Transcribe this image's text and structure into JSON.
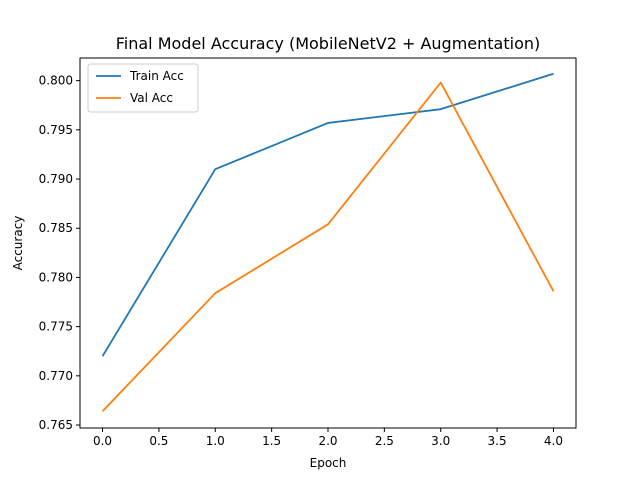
{
  "chart_data": {
    "type": "line",
    "title": "Final Model Accuracy (MobileNetV2 + Augmentation)",
    "xlabel": "Epoch",
    "ylabel": "Accuracy",
    "x": [
      0,
      1,
      2,
      3,
      4
    ],
    "xlim": [
      -0.2,
      4.2
    ],
    "ylim": [
      0.7647,
      0.8023
    ],
    "xticks": [
      0.0,
      0.5,
      1.0,
      1.5,
      2.0,
      2.5,
      3.0,
      3.5,
      4.0
    ],
    "xtick_labels": [
      "0.0",
      "0.5",
      "1.0",
      "1.5",
      "2.0",
      "2.5",
      "3.0",
      "3.5",
      "4.0"
    ],
    "yticks": [
      0.765,
      0.77,
      0.775,
      0.78,
      0.785,
      0.79,
      0.795,
      0.8
    ],
    "ytick_labels": [
      "0.765",
      "0.770",
      "0.775",
      "0.780",
      "0.785",
      "0.790",
      "0.795",
      "0.800"
    ],
    "grid": false,
    "legend_position": "top-left",
    "series": [
      {
        "name": "Train Acc",
        "color": "#1f77b4",
        "values": [
          0.772,
          0.791,
          0.7957,
          0.7971,
          0.8007
        ]
      },
      {
        "name": "Val Acc",
        "color": "#ff7f0e",
        "values": [
          0.7664,
          0.7784,
          0.7854,
          0.7998,
          0.7786
        ]
      }
    ]
  }
}
